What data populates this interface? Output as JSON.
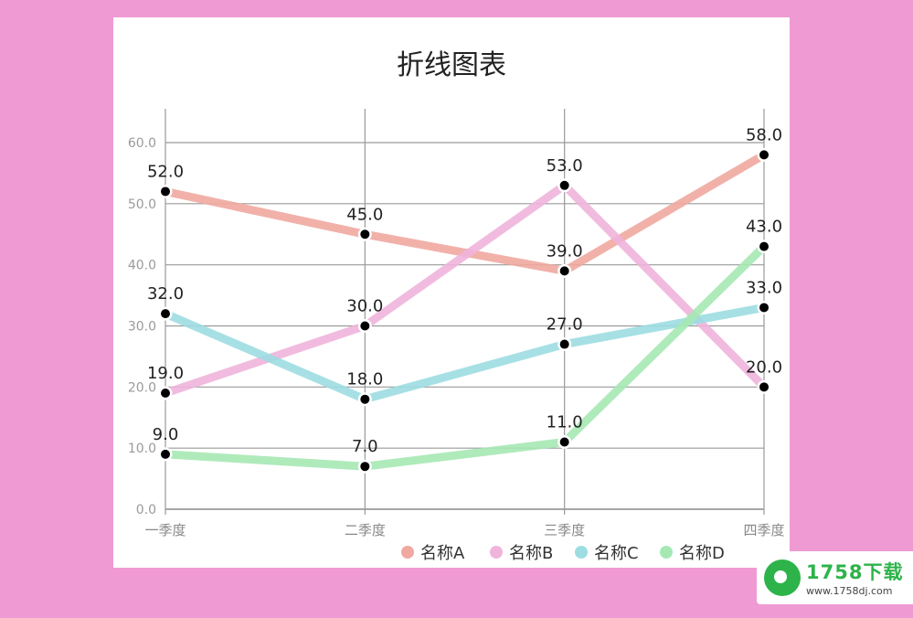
{
  "chart_data": {
    "type": "line",
    "title": "折线图表",
    "categories": [
      "一季度",
      "二季度",
      "三季度",
      "四季度"
    ],
    "ylim": [
      0,
      60
    ],
    "yticks": [
      "0.0",
      "10.0",
      "20.0",
      "30.0",
      "40.0",
      "50.0",
      "60.0"
    ],
    "grid": true,
    "legend_position": "bottom-right",
    "series": [
      {
        "name": "名称A",
        "values": [
          52,
          45,
          39,
          58
        ],
        "labels": [
          "52.0",
          "45.0",
          "39.0",
          "58.0"
        ],
        "color": "#F0A8A0"
      },
      {
        "name": "名称B",
        "values": [
          19,
          30,
          53,
          20
        ],
        "labels": [
          "19.0",
          "30.0",
          "53.0",
          "20.0"
        ],
        "color": "#F0B4DC"
      },
      {
        "name": "名称C",
        "values": [
          32,
          18,
          27,
          33
        ],
        "labels": [
          "32.0",
          "18.0",
          "27.0",
          "33.0"
        ],
        "color": "#9CDDE2"
      },
      {
        "name": "名称D",
        "values": [
          9,
          7,
          11,
          43
        ],
        "labels": [
          "9.0",
          "7.0",
          "11.0",
          "43.0"
        ],
        "color": "#A6E8B4"
      }
    ]
  },
  "watermark": {
    "site": "1758下载",
    "url": "www.1758dj.com"
  }
}
